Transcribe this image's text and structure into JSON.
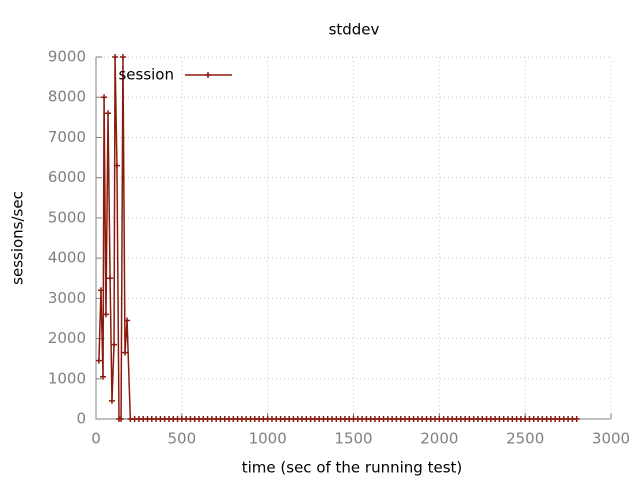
{
  "chart_data": {
    "type": "line",
    "title": "stddev",
    "x_label": "time (sec of the running test)",
    "y_label": "sessions/sec",
    "x": [
      17,
      29,
      41,
      47,
      58,
      70,
      82,
      93,
      105,
      111,
      122,
      134,
      146,
      157,
      169,
      181,
      200,
      225,
      250,
      275,
      300,
      325,
      350,
      375,
      400,
      425,
      450,
      475,
      500,
      525,
      550,
      575,
      600,
      625,
      650,
      675,
      700,
      725,
      750,
      775,
      800,
      825,
      850,
      875,
      900,
      925,
      950,
      975,
      1000,
      1025,
      1050,
      1075,
      1100,
      1125,
      1150,
      1175,
      1200,
      1225,
      1250,
      1275,
      1300,
      1325,
      1350,
      1375,
      1400,
      1425,
      1450,
      1475,
      1500,
      1525,
      1550,
      1575,
      1600,
      1625,
      1650,
      1675,
      1700,
      1725,
      1750,
      1775,
      1800,
      1825,
      1850,
      1875,
      1900,
      1925,
      1950,
      1975,
      2000,
      2025,
      2050,
      2075,
      2100,
      2125,
      2150,
      2175,
      2200,
      2225,
      2250,
      2275,
      2300,
      2325,
      2350,
      2375,
      2400,
      2425,
      2450,
      2475,
      2500,
      2525,
      2550,
      2575,
      2600,
      2625,
      2650,
      2675,
      2700,
      2725,
      2750,
      2775,
      2800
    ],
    "series": [
      {
        "name": "session",
        "color": "#8b1a0e",
        "values": [
          1450,
          3200,
          1050,
          8000,
          2600,
          7600,
          3500,
          450,
          1850,
          9000,
          6300,
          0,
          0,
          9000,
          1650,
          2450,
          0,
          0,
          0,
          0,
          0,
          0,
          0,
          0,
          0,
          0,
          0,
          0,
          0,
          0,
          0,
          0,
          0,
          0,
          0,
          0,
          0,
          0,
          0,
          0,
          0,
          0,
          0,
          0,
          0,
          0,
          0,
          0,
          0,
          0,
          0,
          0,
          0,
          0,
          0,
          0,
          0,
          0,
          0,
          0,
          0,
          0,
          0,
          0,
          0,
          0,
          0,
          0,
          0,
          0,
          0,
          0,
          0,
          0,
          0,
          0,
          0,
          0,
          0,
          0,
          0,
          0,
          0,
          0,
          0,
          0,
          0,
          0,
          0,
          0,
          0,
          0,
          0,
          0,
          0,
          0,
          0,
          0,
          0,
          0,
          0,
          0,
          0,
          0,
          0,
          0,
          0,
          0,
          0,
          0,
          0,
          0,
          0,
          0,
          0,
          0,
          0,
          0,
          0,
          0,
          0
        ]
      }
    ],
    "xlim": [
      0,
      3000
    ],
    "xticks": [
      0,
      500,
      1000,
      1500,
      2000,
      2500,
      3000
    ],
    "ylim": [
      0,
      9000
    ],
    "yticks": [
      0,
      1000,
      2000,
      3000,
      4000,
      5000,
      6000,
      7000,
      8000,
      9000
    ],
    "grid": true,
    "legend": "top-left"
  }
}
